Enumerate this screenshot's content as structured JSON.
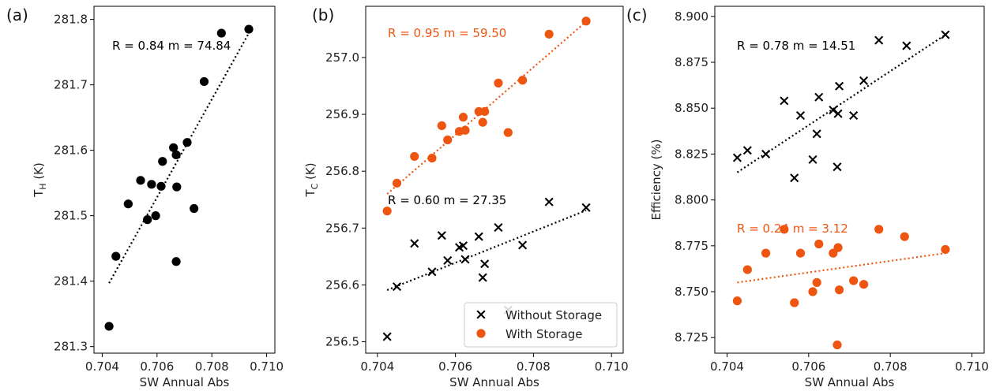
{
  "colors": {
    "without": "#000000",
    "with": "#ee5511"
  },
  "legend": {
    "location": "lower-right",
    "entries": [
      "Without Storage",
      "With Storage"
    ]
  },
  "chart_data": [
    {
      "type": "scatter",
      "panel_label": "(a)",
      "xlabel": "SW Annual Abs",
      "ylabel_main": "T",
      "ylabel_sub": "H",
      "ylabel_unit": " (K)",
      "xlim": [
        0.7037,
        0.7103
      ],
      "ylim": [
        281.29,
        281.82
      ],
      "xticks": [
        0.704,
        0.706,
        0.708,
        0.71
      ],
      "xtick_labels": [
        "0.704",
        "0.706",
        "0.708",
        "0.710"
      ],
      "yticks": [
        281.3,
        281.4,
        281.5,
        281.6,
        281.7,
        281.8
      ],
      "ytick_labels": [
        "281.3",
        "281.4",
        "281.5",
        "281.6",
        "281.7",
        "281.8"
      ],
      "series": [
        {
          "marker": "circle",
          "color_key": "with",
          "filled_color": "#000000",
          "x": [
            0.70425,
            0.7045,
            0.70495,
            0.7054,
            0.70565,
            0.7058,
            0.70595,
            0.70615,
            0.7062,
            0.7066,
            0.7067,
            0.7067,
            0.70672,
            0.7071,
            0.70735,
            0.70772,
            0.70835,
            0.70935
          ],
          "y": [
            281.331,
            281.438,
            281.518,
            281.554,
            281.494,
            281.548,
            281.5,
            281.545,
            281.583,
            281.604,
            281.43,
            281.593,
            281.544,
            281.612,
            281.511,
            281.705,
            281.779,
            281.785
          ],
          "fit": {
            "x": [
              0.70425,
              0.70935
            ],
            "y": [
              281.397,
              281.779
            ]
          },
          "annotation": "R = 0.84   m = 74.84"
        }
      ]
    },
    {
      "type": "scatter",
      "panel_label": "(b)",
      "xlabel": "SW Annual Abs",
      "ylabel_main": "T",
      "ylabel_sub": "C",
      "ylabel_unit": " (K)",
      "xlim": [
        0.7037,
        0.7103
      ],
      "ylim": [
        256.48,
        257.09
      ],
      "xticks": [
        0.704,
        0.706,
        0.708,
        0.71
      ],
      "xtick_labels": [
        "0.704",
        "0.706",
        "0.708",
        "0.710"
      ],
      "yticks": [
        256.5,
        256.6,
        256.7,
        256.8,
        256.9,
        257.0
      ],
      "ytick_labels": [
        "256.5",
        "256.6",
        "256.7",
        "256.8",
        "256.9",
        "257.0"
      ],
      "series": [
        {
          "name": "Without Storage",
          "marker": "x",
          "color_key": "without",
          "x": [
            0.70425,
            0.7045,
            0.70495,
            0.7054,
            0.70565,
            0.7058,
            0.7061,
            0.7062,
            0.70625,
            0.7066,
            0.7067,
            0.70675,
            0.7071,
            0.70735,
            0.70772,
            0.7084,
            0.70935
          ],
          "y": [
            256.509,
            256.597,
            256.673,
            256.623,
            256.687,
            256.643,
            256.666,
            256.669,
            256.645,
            256.685,
            256.613,
            256.637,
            256.701,
            256.556,
            256.67,
            256.746,
            256.736
          ],
          "fit": {
            "x": [
              0.70425,
              0.70935
            ],
            "y": [
              256.591,
              256.731
            ]
          },
          "annotation": "R = 0.60   m = 27.35"
        },
        {
          "name": "With Storage",
          "marker": "circle",
          "color_key": "with",
          "x": [
            0.70425,
            0.7045,
            0.70495,
            0.7054,
            0.70565,
            0.7058,
            0.7061,
            0.7062,
            0.70625,
            0.7066,
            0.7067,
            0.70675,
            0.7071,
            0.70735,
            0.70772,
            0.7084,
            0.70935
          ],
          "y": [
            256.73,
            256.779,
            256.826,
            256.823,
            256.88,
            256.855,
            256.87,
            256.895,
            256.872,
            256.905,
            256.886,
            256.905,
            256.955,
            256.868,
            256.96,
            257.041,
            257.064
          ],
          "fit": {
            "x": [
              0.70425,
              0.70935
            ],
            "y": [
              256.76,
              257.063
            ]
          },
          "annotation": "R = 0.95   m = 59.50"
        }
      ]
    },
    {
      "type": "scatter",
      "panel_label": "(c)",
      "xlabel": "SW Annual Abs",
      "ylabel_main": "Efficiency (%)",
      "ylabel_sub": "",
      "ylabel_unit": "",
      "xlim": [
        0.7037,
        0.7103
      ],
      "ylim": [
        8.7165,
        8.9055
      ],
      "xticks": [
        0.704,
        0.706,
        0.708,
        0.71
      ],
      "xtick_labels": [
        "0.704",
        "0.706",
        "0.708",
        "0.710"
      ],
      "yticks": [
        8.725,
        8.75,
        8.775,
        8.8,
        8.825,
        8.85,
        8.875,
        8.9
      ],
      "ytick_labels": [
        "8.725",
        "8.750",
        "8.775",
        "8.800",
        "8.825",
        "8.850",
        "8.875",
        "8.900"
      ],
      "series": [
        {
          "name": "Without Storage",
          "marker": "x",
          "color_key": "without",
          "x": [
            0.70425,
            0.7045,
            0.70495,
            0.7054,
            0.70565,
            0.7058,
            0.7061,
            0.7062,
            0.70625,
            0.7066,
            0.7067,
            0.70675,
            0.70672,
            0.7071,
            0.70735,
            0.70772,
            0.7084,
            0.70935
          ],
          "y": [
            8.823,
            8.827,
            8.825,
            8.854,
            8.812,
            8.846,
            8.822,
            8.836,
            8.856,
            8.849,
            8.818,
            8.862,
            8.847,
            8.846,
            8.865,
            8.887,
            8.884,
            8.89
          ],
          "fit": {
            "x": [
              0.70425,
              0.70935
            ],
            "y": [
              8.815,
              8.89
            ]
          },
          "annotation": "R = 0.78   m = 14.51"
        },
        {
          "name": "With Storage",
          "marker": "circle",
          "color_key": "with",
          "x": [
            0.70425,
            0.7045,
            0.70495,
            0.7054,
            0.70565,
            0.7058,
            0.7061,
            0.7062,
            0.70625,
            0.7066,
            0.7067,
            0.70672,
            0.70675,
            0.7071,
            0.70735,
            0.70772,
            0.70835,
            0.70935
          ],
          "y": [
            8.745,
            8.762,
            8.771,
            8.784,
            8.744,
            8.771,
            8.75,
            8.755,
            8.776,
            8.771,
            8.721,
            8.774,
            8.751,
            8.756,
            8.754,
            8.784,
            8.78,
            8.773
          ],
          "fit": {
            "x": [
              0.70425,
              0.70935
            ],
            "y": [
              8.755,
              8.771
            ]
          },
          "annotation": "R = 0.24   m = 3.12"
        }
      ]
    }
  ]
}
